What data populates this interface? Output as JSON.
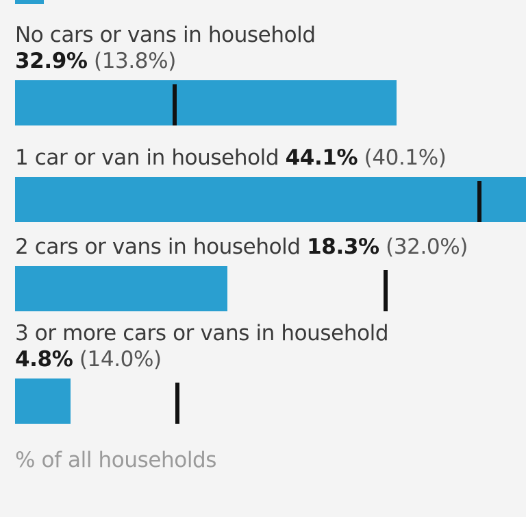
{
  "chart_data": {
    "type": "bar",
    "orientation": "horizontal",
    "categories": [
      "No cars or vans in household",
      "1 car or van in household",
      "2 cars or vans in household",
      "3 or more cars or vans in household"
    ],
    "series": [
      {
        "values": [
          32.9,
          44.1,
          18.3,
          4.8
        ]
      },
      {
        "values": [
          13.8,
          40.1,
          32.0,
          14.0
        ]
      }
    ],
    "value_labels": [
      "32.9%",
      "44.1%",
      "18.3%",
      "4.8%"
    ],
    "reference_labels": [
      "(13.8%)",
      "(40.1%)",
      "(32.0%)",
      "(14.0%)"
    ],
    "xlabel": "% of all households",
    "xlim": [
      0,
      44.1
    ],
    "grid": false,
    "bar_color": "#2a9fd0",
    "marker_color": "#111111"
  }
}
